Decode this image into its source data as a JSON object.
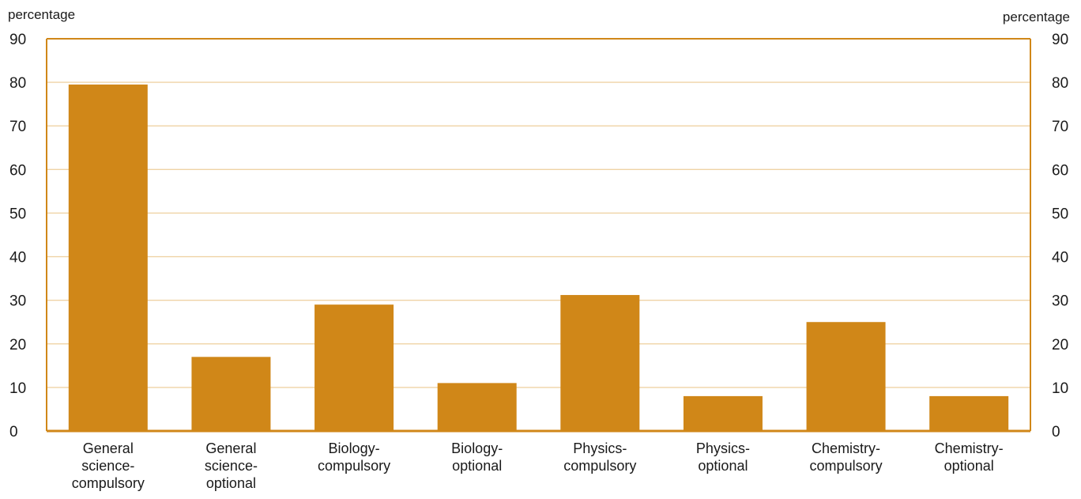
{
  "chart_data": {
    "type": "bar",
    "title": "",
    "ylabel_left": "percentage",
    "ylabel_right": "percentage",
    "ylim": [
      0,
      90
    ],
    "yticks": [
      0,
      10,
      20,
      30,
      40,
      50,
      60,
      70,
      80,
      90
    ],
    "grid": true,
    "categories": [
      [
        "General",
        "science-",
        "compulsory"
      ],
      [
        "General",
        "science-",
        "optional"
      ],
      [
        "Biology-",
        "compulsory"
      ],
      [
        "Biology-",
        "optional"
      ],
      [
        "Physics-",
        "compulsory"
      ],
      [
        "Physics-",
        "optional"
      ],
      [
        "Chemistry-",
        "compulsory"
      ],
      [
        "Chemistry-",
        "optional"
      ]
    ],
    "values": [
      79.5,
      17,
      29,
      11,
      31.2,
      8,
      25,
      8
    ],
    "colors": {
      "bar": "#d08718",
      "axis": "#d08718",
      "grid": "#efd3a5"
    }
  }
}
